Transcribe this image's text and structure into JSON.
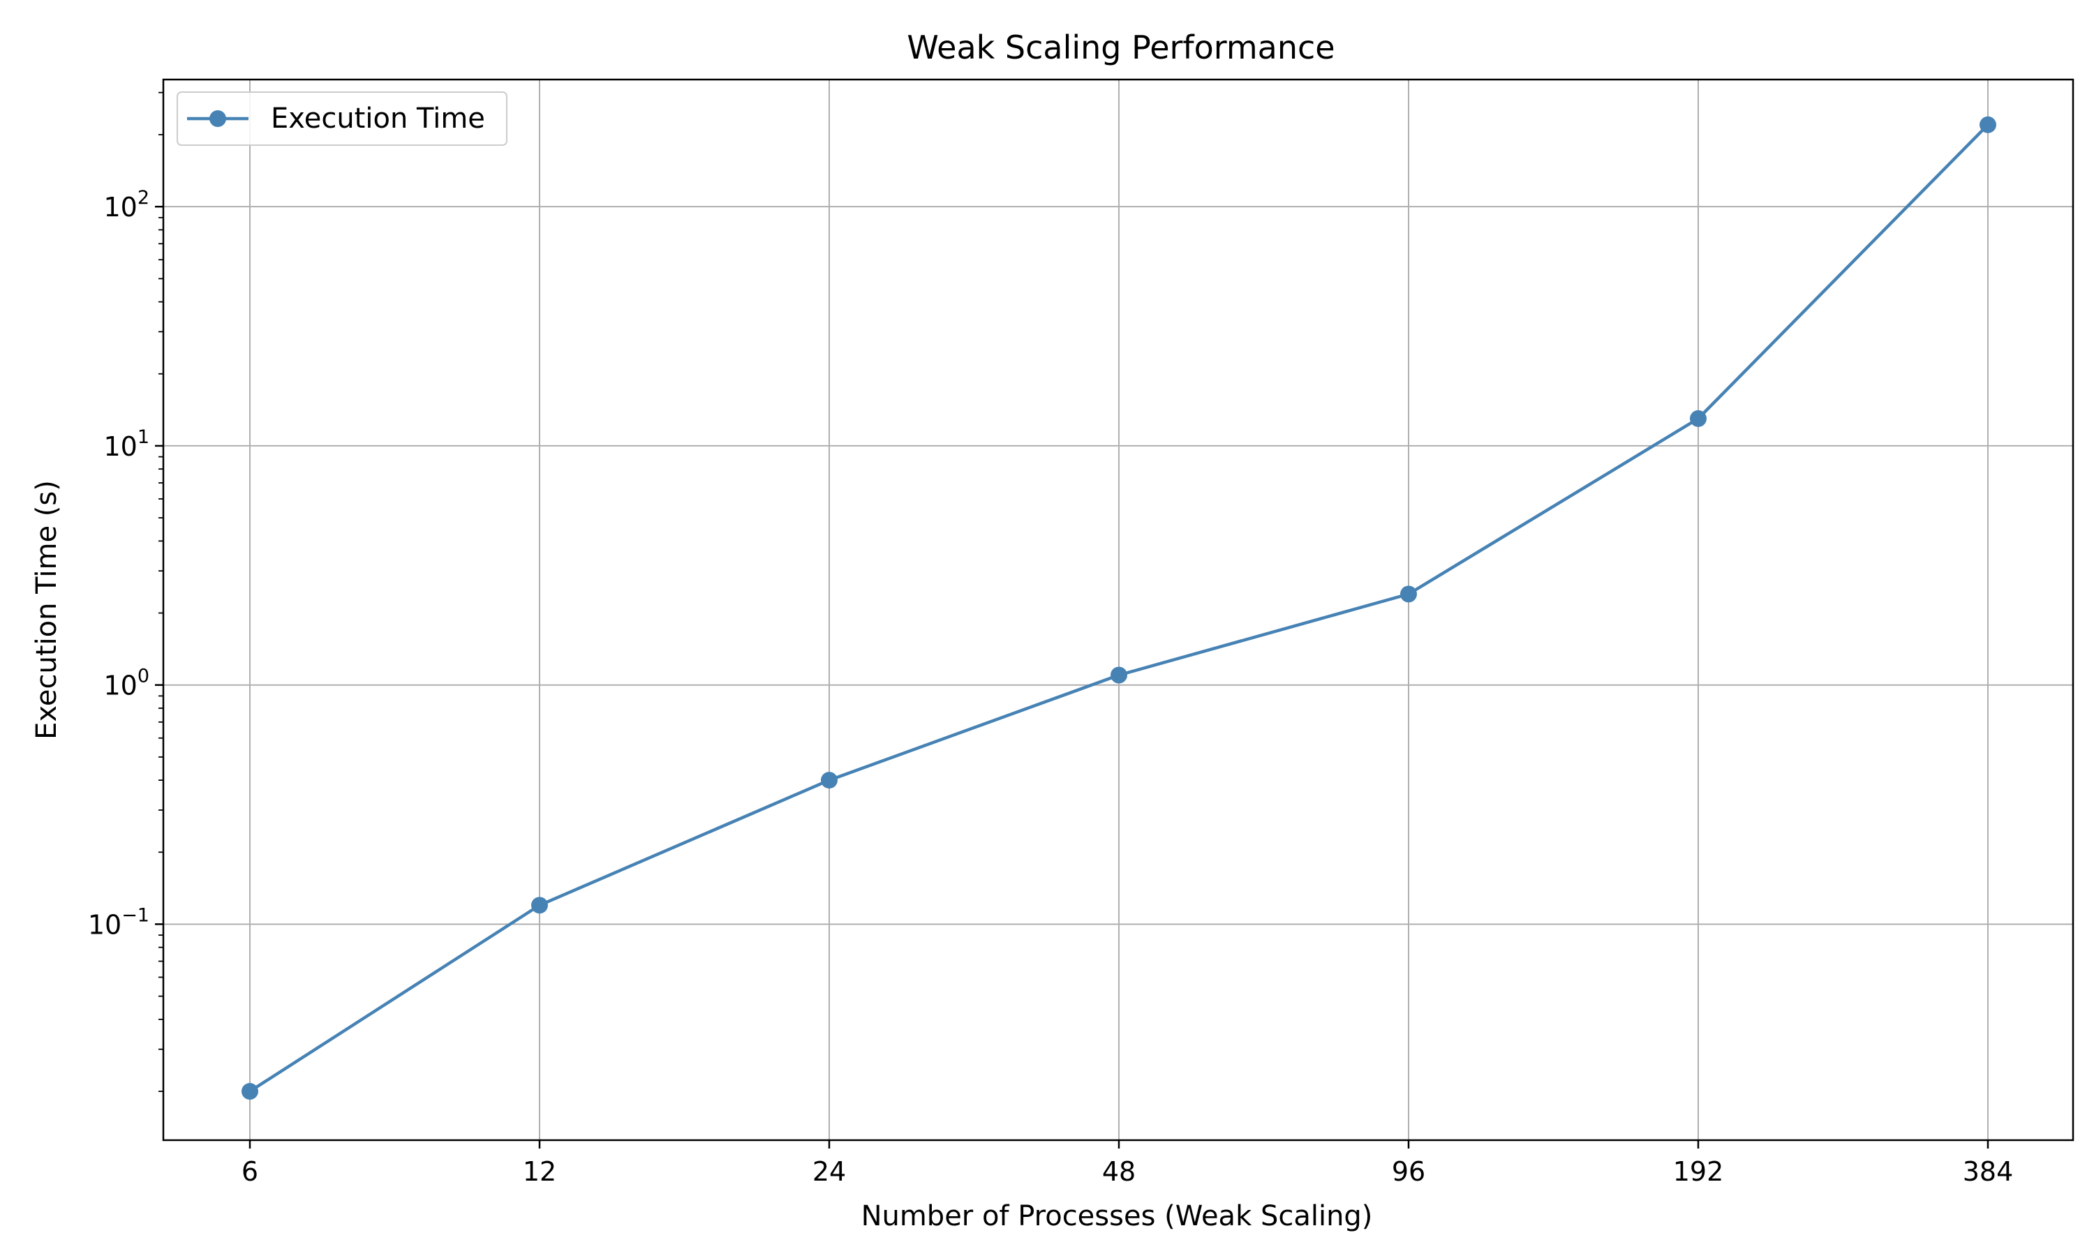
{
  "chart_data": {
    "type": "line",
    "title": "Weak Scaling Performance",
    "xlabel": "Number of Processes (Weak Scaling)",
    "ylabel": "Execution Time (s)",
    "x_scale": "log2",
    "y_scale": "log",
    "ylim": [
      0.0125,
      340
    ],
    "grid": true,
    "legend_position": "top-left",
    "x_ticks": [
      "6",
      "12",
      "24",
      "48",
      "96",
      "192",
      "384"
    ],
    "y_ticks": [
      {
        "base": "10",
        "exp": "−1",
        "value": 0.1
      },
      {
        "base": "10",
        "exp": "0",
        "value": 1
      },
      {
        "base": "10",
        "exp": "1",
        "value": 10
      },
      {
        "base": "10",
        "exp": "2",
        "value": 100
      }
    ],
    "series": [
      {
        "name": "Execution Time",
        "color": "#4682b4",
        "x": [
          6,
          12,
          24,
          48,
          96,
          192,
          384
        ],
        "values": [
          0.02,
          0.12,
          0.4,
          1.1,
          2.4,
          13,
          220
        ]
      }
    ]
  }
}
